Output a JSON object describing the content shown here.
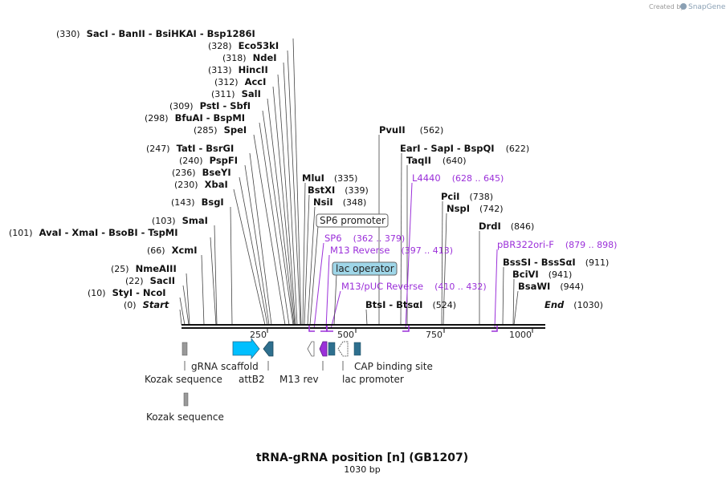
{
  "header": {
    "created_by": "Created by",
    "brand": "SnapGene"
  },
  "title": {
    "name": "tRNA-gRNA position [n] (GB1207)",
    "length": "1030 bp"
  },
  "axis": {
    "ticks": [
      "250",
      "500",
      "750",
      "1000"
    ]
  },
  "sites": [
    {
      "pos": "(330)",
      "names": "SacI  -  BanII  -  BsiHKAI  -  Bsp1286I"
    },
    {
      "pos": "(328)",
      "names": "Eco53kI"
    },
    {
      "pos": "(318)",
      "names": "NdeI"
    },
    {
      "pos": "(313)",
      "names": "HincII"
    },
    {
      "pos": "(312)",
      "names": "AccI"
    },
    {
      "pos": "(311)",
      "names": "SalI"
    },
    {
      "pos": "(309)",
      "names": "PstI  -  SbfI"
    },
    {
      "pos": "(298)",
      "names": "BfuAI  -  BspMI"
    },
    {
      "pos": "(285)",
      "names": "SpeI"
    },
    {
      "pos": "(247)",
      "names": "TatI  -  BsrGI"
    },
    {
      "pos": "(240)",
      "names": "PspFI"
    },
    {
      "pos": "(236)",
      "names": "BseYI"
    },
    {
      "pos": "(230)",
      "names": "XbaI"
    },
    {
      "pos": "(143)",
      "names": "BsgI"
    },
    {
      "pos": "(103)",
      "names": "SmaI"
    },
    {
      "pos": "(101)",
      "names": "AvaI  -  XmaI  -  BsoBI  -  TspMI"
    },
    {
      "pos": "(66)",
      "names": "XcmI"
    },
    {
      "pos": "(25)",
      "names": "NmeAIII"
    },
    {
      "pos": "(22)",
      "names": "SacII"
    },
    {
      "pos": "(10)",
      "names": "StyI  -  NcoI"
    },
    {
      "pos": "(0)",
      "names": "Start"
    },
    {
      "pos": "(335)",
      "names": "MluI"
    },
    {
      "pos": "(339)",
      "names": "BstXI"
    },
    {
      "pos": "(348)",
      "names": "NsiI"
    },
    {
      "pos": "(562)",
      "names": "PvuII"
    },
    {
      "pos": "(622)",
      "names": "EarI  -  SapI  -  BspQI"
    },
    {
      "pos": "(640)",
      "names": "TaqII"
    },
    {
      "pos": "(738)",
      "names": "PciI"
    },
    {
      "pos": "(742)",
      "names": "NspI"
    },
    {
      "pos": "(846)",
      "names": "DrdI"
    },
    {
      "pos": "(911)",
      "names": "BssSI  -  BssSαI"
    },
    {
      "pos": "(941)",
      "names": "BciVI"
    },
    {
      "pos": "(944)",
      "names": "BsaWI"
    },
    {
      "pos": "(524)",
      "names": "BtsI  -  BtsαI"
    },
    {
      "pos": "(1030)",
      "names": "End"
    }
  ],
  "primers": [
    {
      "name": "L4440",
      "range": "(628 .. 645)"
    },
    {
      "name": "SP6",
      "range": "(362 .. 379)"
    },
    {
      "name": "M13 Reverse",
      "range": "(397 .. 413)"
    },
    {
      "name": "M13/pUC Reverse",
      "range": "(410 .. 432)"
    },
    {
      "name": "pBR322ori-F",
      "range": "(879 .. 898)"
    }
  ],
  "boxed_features": [
    "SP6 promoter",
    "lac operator"
  ],
  "features": [
    "gRNA scaffold",
    "Kozak sequence",
    "attB2",
    "M13 rev",
    "lac promoter",
    "CAP binding site",
    "Kozak sequence"
  ],
  "colors": {
    "scaffold": "#00bfff",
    "attb": "#2e6f8e",
    "primer": "#9b30d9",
    "lac_operator_bg": "#9fd6e8",
    "gray_feature": "#999999"
  }
}
